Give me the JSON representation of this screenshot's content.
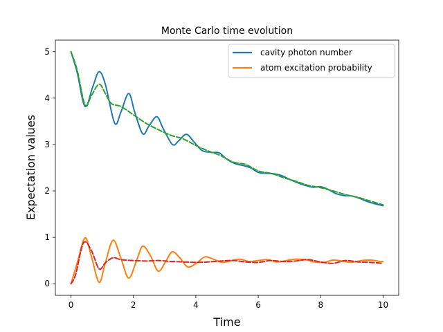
{
  "chart_data": {
    "type": "line",
    "title": "Monte Carlo time evolution",
    "xlabel": "Time",
    "ylabel": "Expectation values",
    "xlim": [
      -0.5,
      10.5
    ],
    "ylim": [
      -0.25,
      5.25
    ],
    "xticks": [
      0,
      2,
      4,
      6,
      8,
      10
    ],
    "yticks": [
      0,
      1,
      2,
      3,
      4,
      5
    ],
    "grid": false,
    "legend_position": "top-right",
    "series": [
      {
        "name": "cavity photon number",
        "color": "#1f77b4",
        "style": "solid",
        "x": [
          0,
          0.2,
          0.45,
          0.7,
          0.9,
          1.1,
          1.4,
          1.6,
          1.85,
          2.05,
          2.3,
          2.5,
          2.75,
          2.95,
          3.25,
          3.45,
          3.7,
          3.95,
          4.2,
          4.5,
          4.75,
          5.0,
          5.25,
          5.5,
          5.75,
          6.0,
          6.25,
          6.5,
          6.75,
          7.0,
          7.25,
          7.5,
          7.75,
          8.0,
          8.25,
          8.5,
          8.75,
          9.0,
          9.25,
          9.5,
          9.75,
          10.0
        ],
        "y": [
          5.0,
          4.55,
          3.82,
          4.25,
          4.57,
          4.3,
          3.46,
          3.7,
          4.1,
          3.68,
          3.23,
          3.4,
          3.6,
          3.35,
          3.0,
          3.08,
          3.22,
          3.05,
          2.87,
          2.83,
          2.82,
          2.68,
          2.59,
          2.55,
          2.5,
          2.4,
          2.38,
          2.37,
          2.33,
          2.25,
          2.18,
          2.12,
          2.08,
          2.09,
          2.03,
          1.94,
          1.9,
          1.89,
          1.84,
          1.77,
          1.72,
          1.68
        ]
      },
      {
        "name": "atom excitation probability",
        "color": "#ff7f0e",
        "style": "solid",
        "x": [
          0,
          0.2,
          0.45,
          0.65,
          0.9,
          1.1,
          1.35,
          1.6,
          1.85,
          2.1,
          2.3,
          2.55,
          2.8,
          3.05,
          3.25,
          3.5,
          3.75,
          4.05,
          4.3,
          4.6,
          4.85,
          5.1,
          5.4,
          5.7,
          6.0,
          6.3,
          6.6,
          6.9,
          7.2,
          7.5,
          7.8,
          8.1,
          8.4,
          8.7,
          9.0,
          9.3,
          9.6,
          9.9,
          10.0
        ],
        "y": [
          0.0,
          0.45,
          0.99,
          0.6,
          0.03,
          0.45,
          0.94,
          0.55,
          0.12,
          0.5,
          0.81,
          0.6,
          0.27,
          0.5,
          0.69,
          0.55,
          0.36,
          0.46,
          0.58,
          0.52,
          0.46,
          0.49,
          0.53,
          0.48,
          0.5,
          0.52,
          0.47,
          0.5,
          0.53,
          0.52,
          0.47,
          0.46,
          0.51,
          0.49,
          0.46,
          0.5,
          0.51,
          0.48,
          0.48
        ]
      },
      {
        "color": "#2ca02c",
        "style": "dashed",
        "x": [
          0,
          0.2,
          0.45,
          0.65,
          0.9,
          1.1,
          1.3,
          1.6,
          2.0,
          2.4,
          2.8,
          3.2,
          3.6,
          4.0,
          4.4,
          4.8,
          5.2,
          5.6,
          6.0,
          6.4,
          6.8,
          7.2,
          7.6,
          8.0,
          8.4,
          8.8,
          9.2,
          9.6,
          10.0
        ],
        "y": [
          5.0,
          4.6,
          3.85,
          4.05,
          4.3,
          4.1,
          3.88,
          3.82,
          3.64,
          3.46,
          3.32,
          3.2,
          3.12,
          2.98,
          2.86,
          2.76,
          2.62,
          2.57,
          2.43,
          2.38,
          2.29,
          2.21,
          2.12,
          2.07,
          2.0,
          1.92,
          1.86,
          1.78,
          1.7
        ]
      },
      {
        "color": "#d62728",
        "style": "dashed",
        "x": [
          0,
          0.15,
          0.4,
          0.65,
          0.9,
          1.1,
          1.35,
          1.6,
          2.0,
          2.4,
          2.8,
          3.2,
          3.6,
          4.0,
          4.4,
          4.8,
          5.2,
          5.6,
          6.0,
          6.4,
          6.8,
          7.2,
          7.6,
          8.0,
          8.4,
          8.8,
          9.2,
          9.6,
          10.0
        ],
        "y": [
          0.0,
          0.2,
          0.88,
          0.72,
          0.32,
          0.45,
          0.56,
          0.52,
          0.5,
          0.49,
          0.5,
          0.48,
          0.47,
          0.46,
          0.47,
          0.49,
          0.5,
          0.47,
          0.46,
          0.5,
          0.48,
          0.49,
          0.52,
          0.47,
          0.44,
          0.5,
          0.47,
          0.46,
          0.44
        ]
      }
    ]
  }
}
